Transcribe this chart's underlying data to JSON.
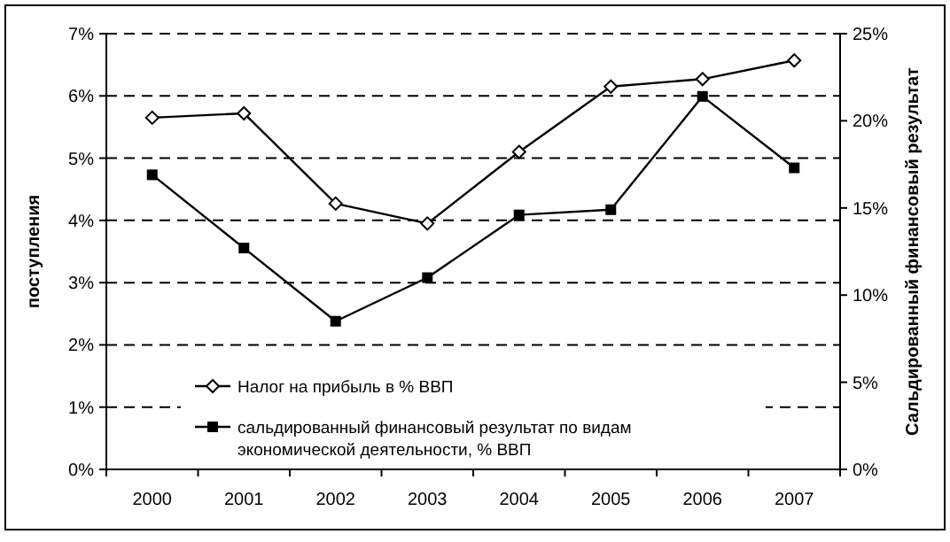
{
  "chart_data": {
    "type": "line",
    "ylabel": "поступления",
    "y2label": "Сальдированный финансовый результат",
    "categories": [
      "2000",
      "2001",
      "2002",
      "2003",
      "2004",
      "2005",
      "2006",
      "2007"
    ],
    "series": [
      {
        "name": "Налог на прибыль в % ВВП",
        "color": "#000000",
        "marker": "diamond",
        "values": [
          5.65,
          5.72,
          4.27,
          3.95,
          5.1,
          6.15,
          6.27,
          6.57
        ]
      },
      {
        "name": "сальдированный финансовый результат по видам экономической деятельности, % ВВП",
        "color": "#000000",
        "marker": "square",
        "axis": "y2",
        "values": [
          16.9,
          12.7,
          8.5,
          11.0,
          14.6,
          14.9,
          21.4,
          17.3
        ]
      }
    ],
    "ylim": [
      0,
      7
    ],
    "yticks": [
      {
        "value": 0,
        "label": "0%"
      },
      {
        "value": 1,
        "label": "1%"
      },
      {
        "value": 2,
        "label": "2%"
      },
      {
        "value": 3,
        "label": "3%"
      },
      {
        "value": 4,
        "label": "4%"
      },
      {
        "value": 5,
        "label": "5%"
      },
      {
        "value": 6,
        "label": "6%"
      },
      {
        "value": 7,
        "label": "7%"
      }
    ],
    "y2lim": [
      0,
      25
    ],
    "y2ticks": [
      {
        "value": 0,
        "label": "0%"
      },
      {
        "value": 5,
        "label": "5%"
      },
      {
        "value": 10,
        "label": "10%"
      },
      {
        "value": 15,
        "label": "15%"
      },
      {
        "value": 20,
        "label": "20%"
      },
      {
        "value": 25,
        "label": "25%"
      }
    ],
    "grid": "y",
    "legend": "bottom"
  }
}
